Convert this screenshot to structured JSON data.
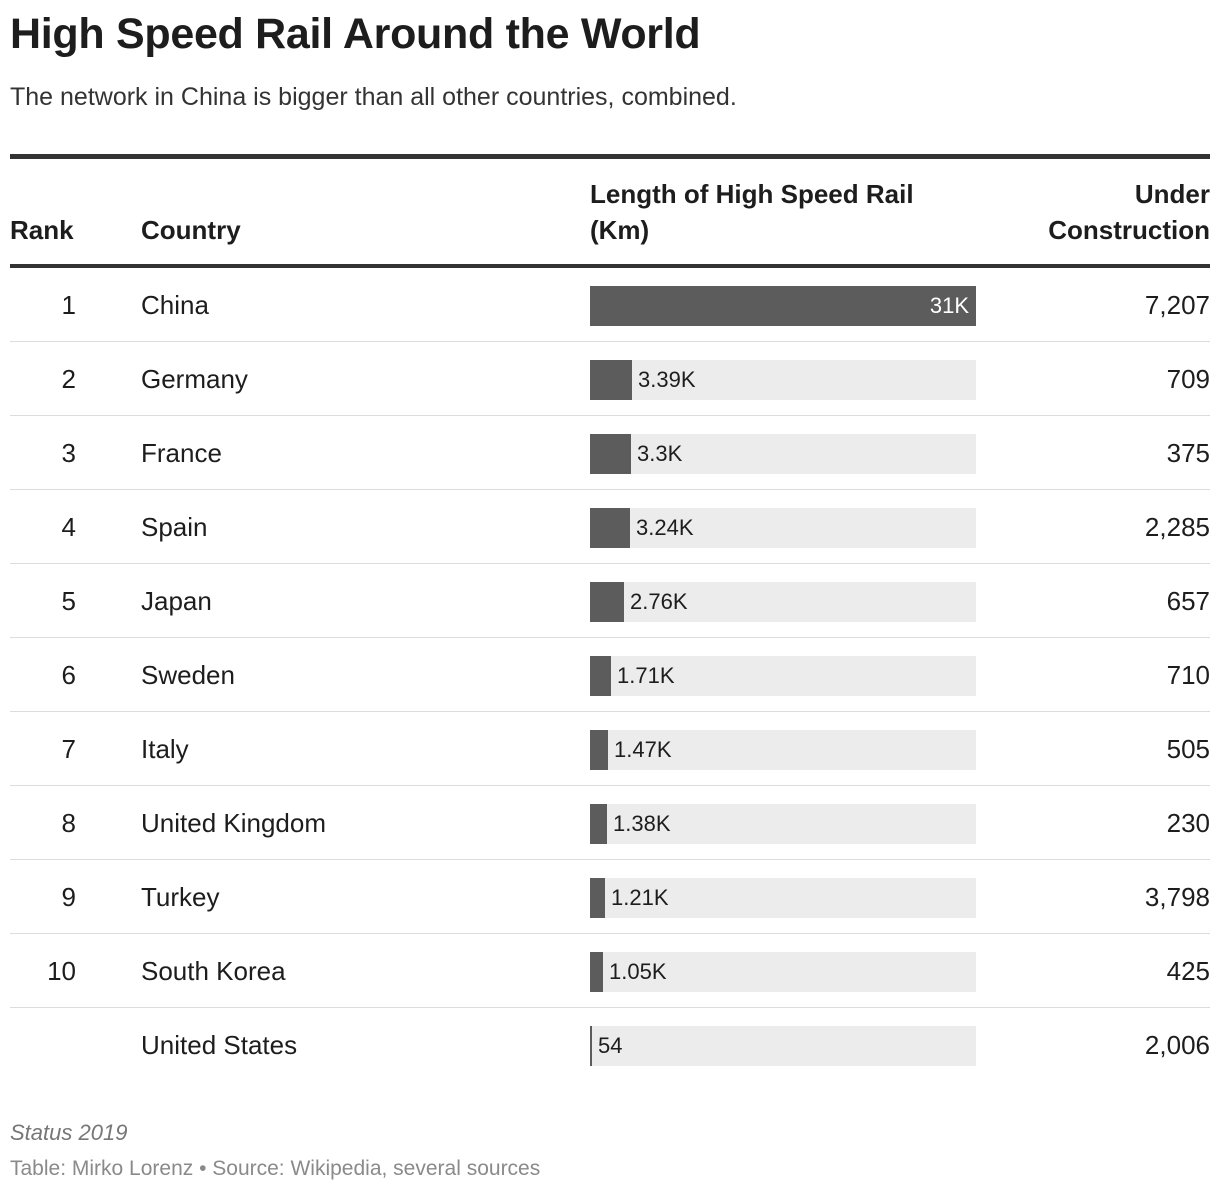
{
  "title": "High Speed Rail Around the World",
  "subtitle": "The network in China is bigger than all other countries, combined.",
  "columns": {
    "rank": "Rank",
    "country": "Country",
    "length": "Length of High Speed Rail (Km)",
    "under": "Under Construction"
  },
  "colors": {
    "bar": "#5c5c5c",
    "track": "#ececec",
    "rule": "#333333"
  },
  "chart_data": {
    "type": "table",
    "title": "High Speed Rail Around the World",
    "bar_column": "Length of High Speed Rail (Km)",
    "bar_max": 31000,
    "rows": [
      {
        "rank": "1",
        "country": "China",
        "length": 31000,
        "length_label": "31K",
        "under": "7,207"
      },
      {
        "rank": "2",
        "country": "Germany",
        "length": 3390,
        "length_label": "3.39K",
        "under": "709"
      },
      {
        "rank": "3",
        "country": "France",
        "length": 3300,
        "length_label": "3.3K",
        "under": "375"
      },
      {
        "rank": "4",
        "country": "Spain",
        "length": 3240,
        "length_label": "3.24K",
        "under": "2,285"
      },
      {
        "rank": "5",
        "country": "Japan",
        "length": 2760,
        "length_label": "2.76K",
        "under": "657"
      },
      {
        "rank": "6",
        "country": "Sweden",
        "length": 1710,
        "length_label": "1.71K",
        "under": "710"
      },
      {
        "rank": "7",
        "country": "Italy",
        "length": 1470,
        "length_label": "1.47K",
        "under": "505"
      },
      {
        "rank": "8",
        "country": "United Kingdom",
        "length": 1380,
        "length_label": "1.38K",
        "under": "230"
      },
      {
        "rank": "9",
        "country": "Turkey",
        "length": 1210,
        "length_label": "1.21K",
        "under": "3,798"
      },
      {
        "rank": "10",
        "country": "South Korea",
        "length": 1050,
        "length_label": "1.05K",
        "under": "425"
      },
      {
        "rank": "",
        "country": "United States",
        "length": 54,
        "length_label": "54",
        "under": "2,006"
      }
    ]
  },
  "notes": "Status 2019",
  "credit": "Table: Mirko Lorenz • Source: Wikipedia, several sources"
}
